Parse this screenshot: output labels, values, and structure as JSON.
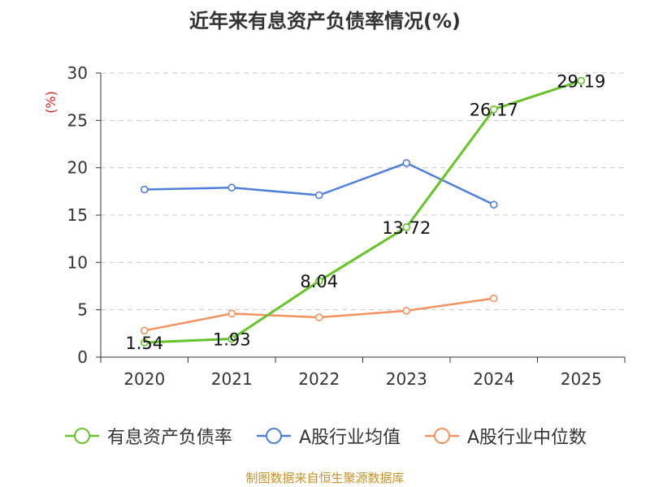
{
  "chart_data": {
    "type": "line",
    "title": "近年来有息资产负债率情况(%)",
    "ylabel": "(%)",
    "xlabel": "",
    "categories": [
      "2020",
      "2021",
      "2022",
      "2023",
      "2024",
      "2025"
    ],
    "ylim": [
      0,
      30
    ],
    "yticks": [
      0,
      5,
      10,
      15,
      20,
      25,
      30
    ],
    "grid": true,
    "legend_position": "bottom",
    "series": [
      {
        "name": "有息资产负债率",
        "color": "#66c42a",
        "values": [
          1.54,
          1.93,
          8.04,
          13.72,
          26.17,
          29.19
        ],
        "labels": [
          "1.54",
          "1.93",
          "8.04",
          "13.72",
          "26.17",
          "29.19"
        ]
      },
      {
        "name": "A股行业均值",
        "color": "#4e7fd8",
        "values": [
          17.7,
          17.9,
          17.1,
          20.5,
          16.1,
          null
        ]
      },
      {
        "name": "A股行业中位数",
        "color": "#f4925e",
        "values": [
          2.8,
          4.6,
          4.2,
          4.9,
          6.2,
          null
        ]
      }
    ]
  },
  "source_text": "制图数据来自恒生聚源数据库",
  "colors": {
    "axis": "#333333",
    "grid": "#c8c8c8",
    "ylabel": "#e02020",
    "source": "#c8922a"
  }
}
